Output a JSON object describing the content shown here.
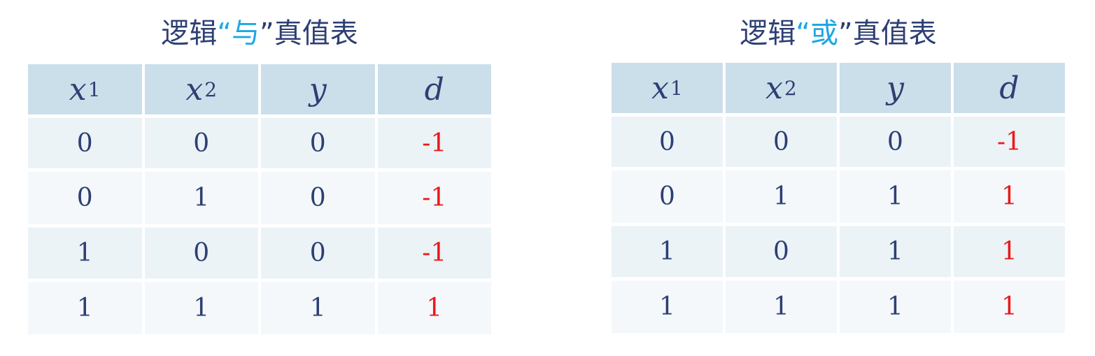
{
  "tables": [
    {
      "title": {
        "prefix": "逻辑",
        "open_quote": "“",
        "keyword": "与",
        "close_quote": "”",
        "suffix": "真值表"
      },
      "headers": [
        {
          "var": "x",
          "sub": "1"
        },
        {
          "var": "x",
          "sub": "2"
        },
        {
          "var": "y",
          "sub": ""
        },
        {
          "var": "d",
          "sub": ""
        }
      ],
      "rows": [
        [
          "0",
          "0",
          "0",
          "-1"
        ],
        [
          "0",
          "1",
          "0",
          "-1"
        ],
        [
          "1",
          "0",
          "0",
          "-1"
        ],
        [
          "1",
          "1",
          "1",
          "1"
        ]
      ]
    },
    {
      "title": {
        "prefix": "逻辑",
        "open_quote": "“",
        "keyword": "或",
        "close_quote": "”",
        "suffix": "真值表"
      },
      "headers": [
        {
          "var": "x",
          "sub": "1"
        },
        {
          "var": "x",
          "sub": "2"
        },
        {
          "var": "y",
          "sub": ""
        },
        {
          "var": "d",
          "sub": ""
        }
      ],
      "rows": [
        [
          "0",
          "0",
          "0",
          "-1"
        ],
        [
          "0",
          "1",
          "1",
          "1"
        ],
        [
          "1",
          "0",
          "1",
          "1"
        ],
        [
          "1",
          "1",
          "1",
          "1"
        ]
      ]
    }
  ],
  "colors": {
    "title_text": "#2d3f73",
    "title_keyword": "#1ea7e4",
    "header_bg": "#cbdfea",
    "row_bg_odd": "#ebf3f7",
    "row_bg_even": "#f4f8fb",
    "cell_text": "#2d3f73",
    "d_column_text": "#e81a1a"
  }
}
